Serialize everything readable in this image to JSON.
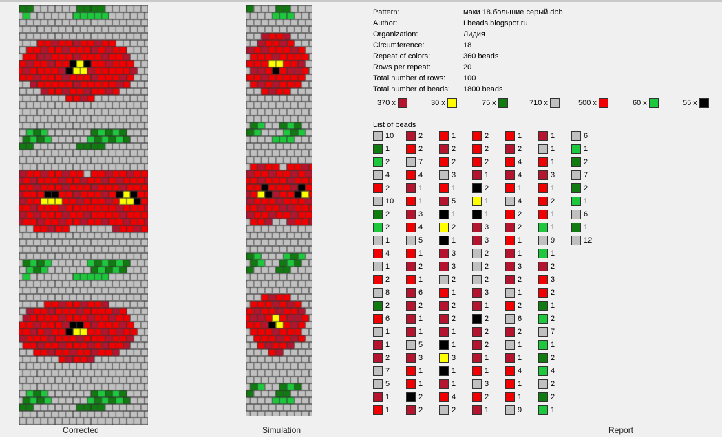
{
  "panes": {
    "corrected_label": "Corrected",
    "simulation_label": "Simulation",
    "report_label": "Report"
  },
  "colors": {
    "gray": "#c0c0c0",
    "dark_red": "#b4142d",
    "red": "#f00000",
    "yellow": "#ffff00",
    "dark_green": "#117a11",
    "green": "#1ec83c",
    "black": "#000000"
  },
  "report": {
    "info": [
      {
        "key": "Pattern:",
        "value": "маки 18.большие серый.dbb"
      },
      {
        "key": "Author:",
        "value": "Lbeads.blogspot.ru"
      },
      {
        "key": "Organization:",
        "value": "Лидия"
      },
      {
        "key": "Circumference:",
        "value": "18"
      },
      {
        "key": "Repeat of colors:",
        "value": "360 beads"
      },
      {
        "key": "Rows per repeat:",
        "value": "20"
      },
      {
        "key": "Total number of rows:",
        "value": "100"
      },
      {
        "key": "Total number of beads:",
        "value": "1800 beads"
      }
    ],
    "totals": [
      {
        "count": "370 x",
        "color": "#b4142d"
      },
      {
        "count": "30 x",
        "color": "#ffff00"
      },
      {
        "count": "75 x",
        "color": "#117a11"
      },
      {
        "count": "710 x",
        "color": "#c0c0c0"
      },
      {
        "count": "500 x",
        "color": "#f00000"
      },
      {
        "count": "60 x",
        "color": "#1ec83c"
      },
      {
        "count": "55 x",
        "color": "#000000"
      }
    ],
    "list_title": "List of beads",
    "list_columns": [
      [
        [
          "G",
          "10"
        ],
        [
          "DG",
          "1"
        ],
        [
          "LG",
          "2"
        ],
        [
          "G",
          "4"
        ],
        [
          "R",
          "2"
        ],
        [
          "G",
          "10"
        ],
        [
          "DG",
          "2"
        ],
        [
          "LG",
          "2"
        ],
        [
          "G",
          "1"
        ],
        [
          "R",
          "4"
        ],
        [
          "G",
          "1"
        ],
        [
          "R",
          "2"
        ],
        [
          "G",
          "8"
        ],
        [
          "DG",
          "2"
        ],
        [
          "R",
          "6"
        ],
        [
          "G",
          "1"
        ],
        [
          "DR",
          "1"
        ],
        [
          "DR",
          "2"
        ],
        [
          "G",
          "7"
        ],
        [
          "G",
          "5"
        ],
        [
          "DR",
          "1"
        ],
        [
          "R",
          "1"
        ]
      ],
      [
        [
          "DR",
          "2"
        ],
        [
          "R",
          "2"
        ],
        [
          "G",
          "7"
        ],
        [
          "R",
          "4"
        ],
        [
          "DR",
          "1"
        ],
        [
          "R",
          "1"
        ],
        [
          "DR",
          "3"
        ],
        [
          "R",
          "4"
        ],
        [
          "G",
          "5"
        ],
        [
          "R",
          "1"
        ],
        [
          "DR",
          "2"
        ],
        [
          "R",
          "1"
        ],
        [
          "DR",
          "6"
        ],
        [
          "DR",
          "2"
        ],
        [
          "DR",
          "1"
        ],
        [
          "DR",
          "1"
        ],
        [
          "G",
          "5"
        ],
        [
          "DR",
          "3"
        ],
        [
          "R",
          "1"
        ],
        [
          "R",
          "1"
        ],
        [
          "K",
          "2"
        ],
        [
          "DR",
          "2"
        ]
      ],
      [
        [
          "R",
          "1"
        ],
        [
          "DR",
          "2"
        ],
        [
          "R",
          "2"
        ],
        [
          "G",
          "3"
        ],
        [
          "R",
          "1"
        ],
        [
          "DR",
          "5"
        ],
        [
          "K",
          "1"
        ],
        [
          "Y",
          "2"
        ],
        [
          "K",
          "1"
        ],
        [
          "DR",
          "3"
        ],
        [
          "DR",
          "3"
        ],
        [
          "G",
          "2"
        ],
        [
          "R",
          "1"
        ],
        [
          "DR",
          "2"
        ],
        [
          "DR",
          "2"
        ],
        [
          "DR",
          "1"
        ],
        [
          "K",
          "1"
        ],
        [
          "Y",
          "3"
        ],
        [
          "K",
          "1"
        ],
        [
          "DR",
          "1"
        ],
        [
          "R",
          "4"
        ],
        [
          "G",
          "2"
        ]
      ],
      [
        [
          "R",
          "2"
        ],
        [
          "R",
          "2"
        ],
        [
          "R",
          "2"
        ],
        [
          "DR",
          "1"
        ],
        [
          "K",
          "2"
        ],
        [
          "Y",
          "1"
        ],
        [
          "K",
          "1"
        ],
        [
          "DR",
          "3"
        ],
        [
          "DR",
          "3"
        ],
        [
          "G",
          "2"
        ],
        [
          "G",
          "2"
        ],
        [
          "G",
          "2"
        ],
        [
          "DR",
          "3"
        ],
        [
          "DR",
          "1"
        ],
        [
          "K",
          "2"
        ],
        [
          "DR",
          "2"
        ],
        [
          "DR",
          "2"
        ],
        [
          "DR",
          "1"
        ],
        [
          "R",
          "1"
        ],
        [
          "G",
          "3"
        ],
        [
          "R",
          "2"
        ],
        [
          "DR",
          "1"
        ]
      ],
      [
        [
          "R",
          "1"
        ],
        [
          "DR",
          "2"
        ],
        [
          "R",
          "4"
        ],
        [
          "DR",
          "4"
        ],
        [
          "R",
          "1"
        ],
        [
          "G",
          "4"
        ],
        [
          "R",
          "2"
        ],
        [
          "DR",
          "2"
        ],
        [
          "R",
          "1"
        ],
        [
          "DR",
          "1"
        ],
        [
          "DR",
          "3"
        ],
        [
          "DR",
          "2"
        ],
        [
          "G",
          "1"
        ],
        [
          "R",
          "2"
        ],
        [
          "G",
          "6"
        ],
        [
          "DR",
          "2"
        ],
        [
          "G",
          "1"
        ],
        [
          "DR",
          "1"
        ],
        [
          "R",
          "4"
        ],
        [
          "R",
          "1"
        ],
        [
          "R",
          "1"
        ],
        [
          "G",
          "9"
        ]
      ],
      [
        [
          "DR",
          "1"
        ],
        [
          "G",
          "1"
        ],
        [
          "R",
          "1"
        ],
        [
          "DR",
          "3"
        ],
        [
          "R",
          "1"
        ],
        [
          "R",
          "2"
        ],
        [
          "R",
          "1"
        ],
        [
          "LG",
          "1"
        ],
        [
          "G",
          "9"
        ],
        [
          "LG",
          "1"
        ],
        [
          "DR",
          "2"
        ],
        [
          "R",
          "3"
        ],
        [
          "R",
          "2"
        ],
        [
          "DG",
          "1"
        ],
        [
          "LG",
          "2"
        ],
        [
          "G",
          "7"
        ],
        [
          "LG",
          "1"
        ],
        [
          "DG",
          "2"
        ],
        [
          "LG",
          "4"
        ],
        [
          "G",
          "2"
        ],
        [
          "DG",
          "2"
        ],
        [
          "LG",
          "1"
        ]
      ],
      [
        [
          "G",
          "6"
        ],
        [
          "LG",
          "1"
        ],
        [
          "DG",
          "2"
        ],
        [
          "G",
          "7"
        ],
        [
          "DG",
          "2"
        ],
        [
          "LG",
          "1"
        ],
        [
          "G",
          "6"
        ],
        [
          "DG",
          "1"
        ],
        [
          "G",
          "12"
        ]
      ]
    ]
  }
}
